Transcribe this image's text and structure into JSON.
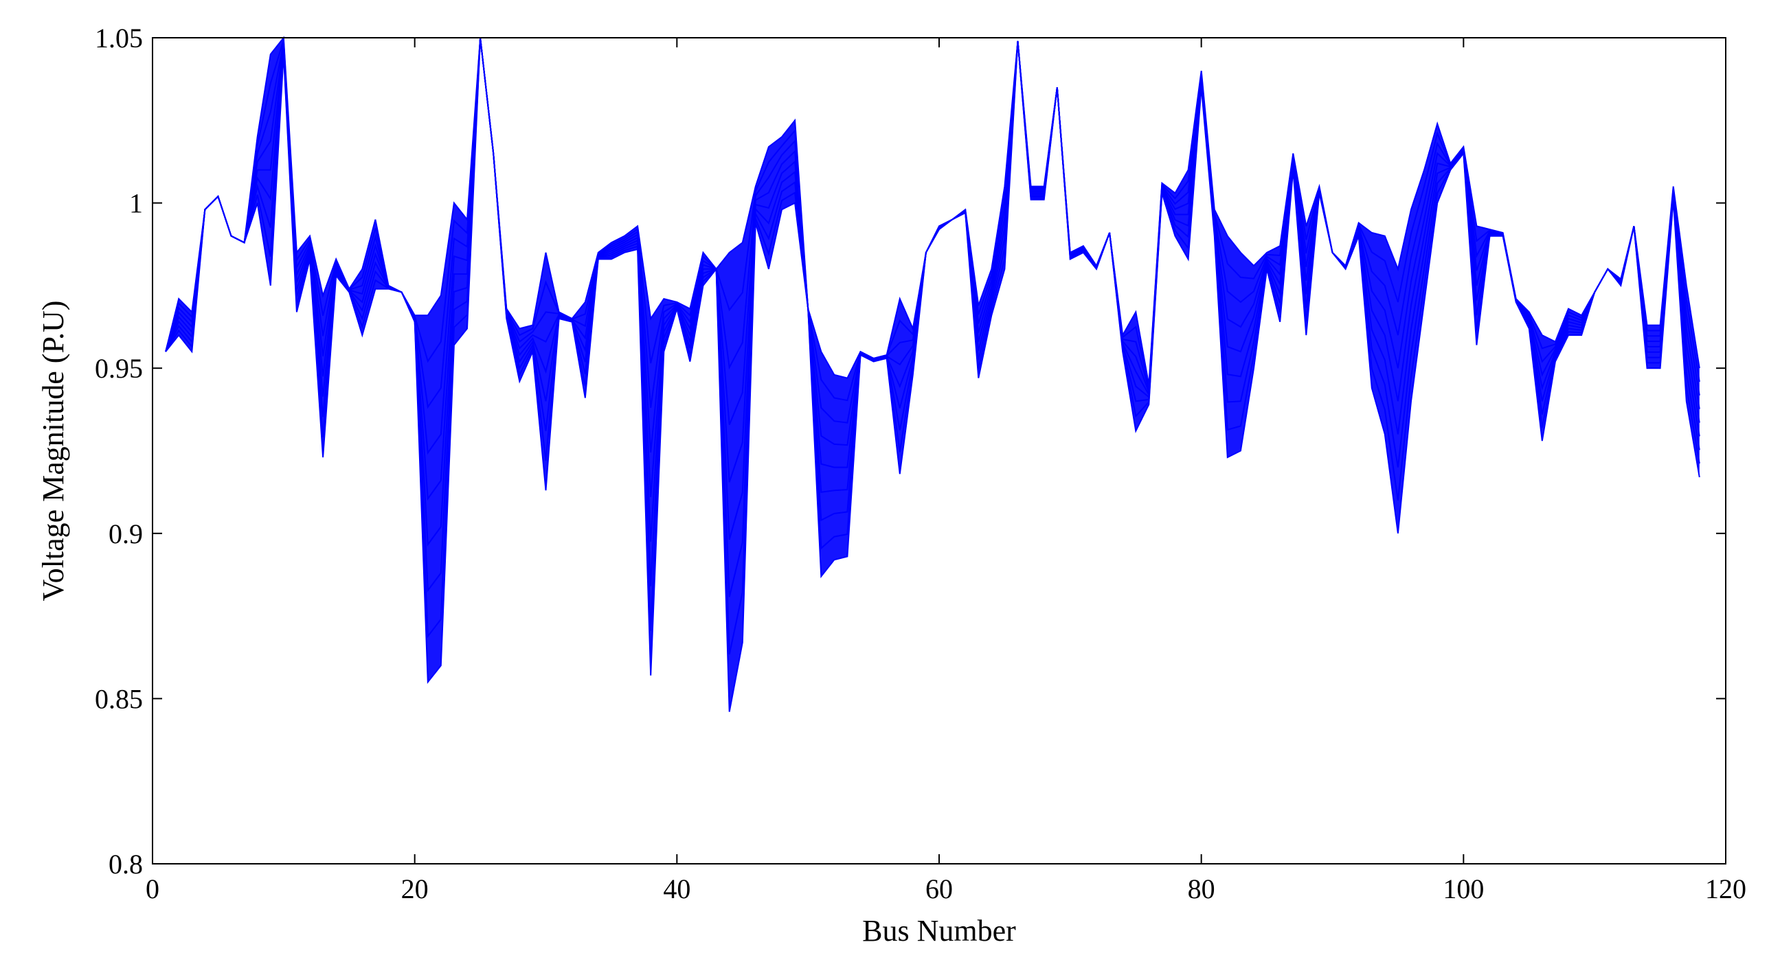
{
  "chart_data": {
    "type": "line",
    "title": "",
    "xlabel": "Bus Number",
    "ylabel": "Voltage Magnitude (P.U)",
    "xlim": [
      0,
      120
    ],
    "ylim": [
      0.8,
      1.05
    ],
    "xticks": [
      0,
      20,
      40,
      60,
      80,
      100,
      120
    ],
    "xtick_labels": [
      "0",
      "20",
      "40",
      "60",
      "80",
      "100",
      "120"
    ],
    "yticks": [
      0.8,
      0.85,
      0.9,
      0.95,
      1.0,
      1.05
    ],
    "ytick_labels": [
      "0.8",
      "0.85",
      "0.9",
      "0.95",
      "1",
      "1.05"
    ],
    "grid": false,
    "legend": "none",
    "series_color": "#0000ff",
    "series_note": "Family of bus-voltage profiles; the band spans the lower and upper envelopes shown below",
    "x": [
      1,
      2,
      3,
      4,
      5,
      6,
      7,
      8,
      9,
      10,
      11,
      12,
      13,
      14,
      15,
      16,
      17,
      18,
      19,
      20,
      21,
      22,
      23,
      24,
      25,
      26,
      27,
      28,
      29,
      30,
      31,
      32,
      33,
      34,
      35,
      36,
      37,
      38,
      39,
      40,
      41,
      42,
      43,
      44,
      45,
      46,
      47,
      48,
      49,
      50,
      51,
      52,
      53,
      54,
      55,
      56,
      57,
      58,
      59,
      60,
      61,
      62,
      63,
      64,
      65,
      66,
      67,
      68,
      69,
      70,
      71,
      72,
      73,
      74,
      75,
      76,
      77,
      78,
      79,
      80,
      81,
      82,
      83,
      84,
      85,
      86,
      87,
      88,
      89,
      90,
      91,
      92,
      93,
      94,
      95,
      96,
      97,
      98,
      99,
      100,
      101,
      102,
      103,
      104,
      105,
      106,
      107,
      108,
      109,
      110,
      111,
      112,
      113,
      114,
      115,
      116,
      117,
      118
    ],
    "series": [
      {
        "name": "",
        "values": [
          0.955,
          0.96,
          0.955,
          0.998,
          1.002,
          0.99,
          0.988,
          1.0,
          0.975,
          1.045,
          0.967,
          0.983,
          0.923,
          0.978,
          0.973,
          0.96,
          0.974,
          0.974,
          0.973,
          0.964,
          0.855,
          0.86,
          0.957,
          0.962,
          1.05,
          1.015,
          0.965,
          0.946,
          0.955,
          0.913,
          0.965,
          0.964,
          0.941,
          0.983,
          0.983,
          0.985,
          0.986,
          0.857,
          0.955,
          0.968,
          0.952,
          0.975,
          0.98,
          0.846,
          0.867,
          0.994,
          0.98,
          0.998,
          1.0,
          0.968,
          0.887,
          0.892,
          0.893,
          0.954,
          0.952,
          0.953,
          0.918,
          0.948,
          0.985,
          0.992,
          0.995,
          0.997,
          0.947,
          0.966,
          0.98,
          1.049,
          1.001,
          1.001,
          1.035,
          0.983,
          0.985,
          0.98,
          0.991,
          0.955,
          0.931,
          0.939,
          1.003,
          0.99,
          0.983,
          1.035,
          0.99,
          0.923,
          0.925,
          0.95,
          0.98,
          0.964,
          1.01,
          0.96,
          1.003,
          0.985,
          0.98,
          0.99,
          0.944,
          0.93,
          0.9,
          0.94,
          0.97,
          1.0,
          1.01,
          1.015,
          0.957,
          0.99,
          0.99,
          0.97,
          0.962,
          0.928,
          0.952,
          0.96,
          0.96,
          0.973,
          0.98,
          0.975,
          0.993,
          0.95,
          0.95,
          1.001,
          0.94,
          0.917
        ]
      },
      {
        "name": "",
        "values": [
          0.955,
          0.971,
          0.967,
          0.998,
          1.002,
          0.99,
          0.988,
          1.02,
          1.045,
          1.05,
          0.985,
          0.99,
          0.972,
          0.983,
          0.974,
          0.98,
          0.995,
          0.975,
          0.973,
          0.966,
          0.966,
          0.972,
          1.0,
          0.995,
          1.05,
          1.015,
          0.968,
          0.962,
          0.963,
          0.985,
          0.967,
          0.965,
          0.97,
          0.985,
          0.988,
          0.99,
          0.993,
          0.965,
          0.971,
          0.97,
          0.968,
          0.985,
          0.98,
          0.985,
          0.988,
          1.005,
          1.017,
          1.02,
          1.025,
          0.968,
          0.955,
          0.948,
          0.947,
          0.955,
          0.953,
          0.954,
          0.971,
          0.962,
          0.985,
          0.993,
          0.995,
          0.998,
          0.969,
          0.98,
          1.005,
          1.049,
          1.005,
          1.005,
          1.035,
          0.985,
          0.987,
          0.981,
          0.991,
          0.96,
          0.967,
          0.945,
          1.006,
          1.003,
          1.01,
          1.04,
          0.998,
          0.99,
          0.985,
          0.981,
          0.985,
          0.987,
          1.015,
          0.993,
          1.005,
          0.985,
          0.981,
          0.994,
          0.991,
          0.99,
          0.98,
          0.998,
          1.01,
          1.024,
          1.012,
          1.017,
          0.993,
          0.992,
          0.991,
          0.971,
          0.967,
          0.96,
          0.958,
          0.968,
          0.966,
          0.973,
          0.98,
          0.977,
          0.993,
          0.963,
          0.963,
          1.005,
          0.975,
          0.95
        ]
      }
    ]
  }
}
